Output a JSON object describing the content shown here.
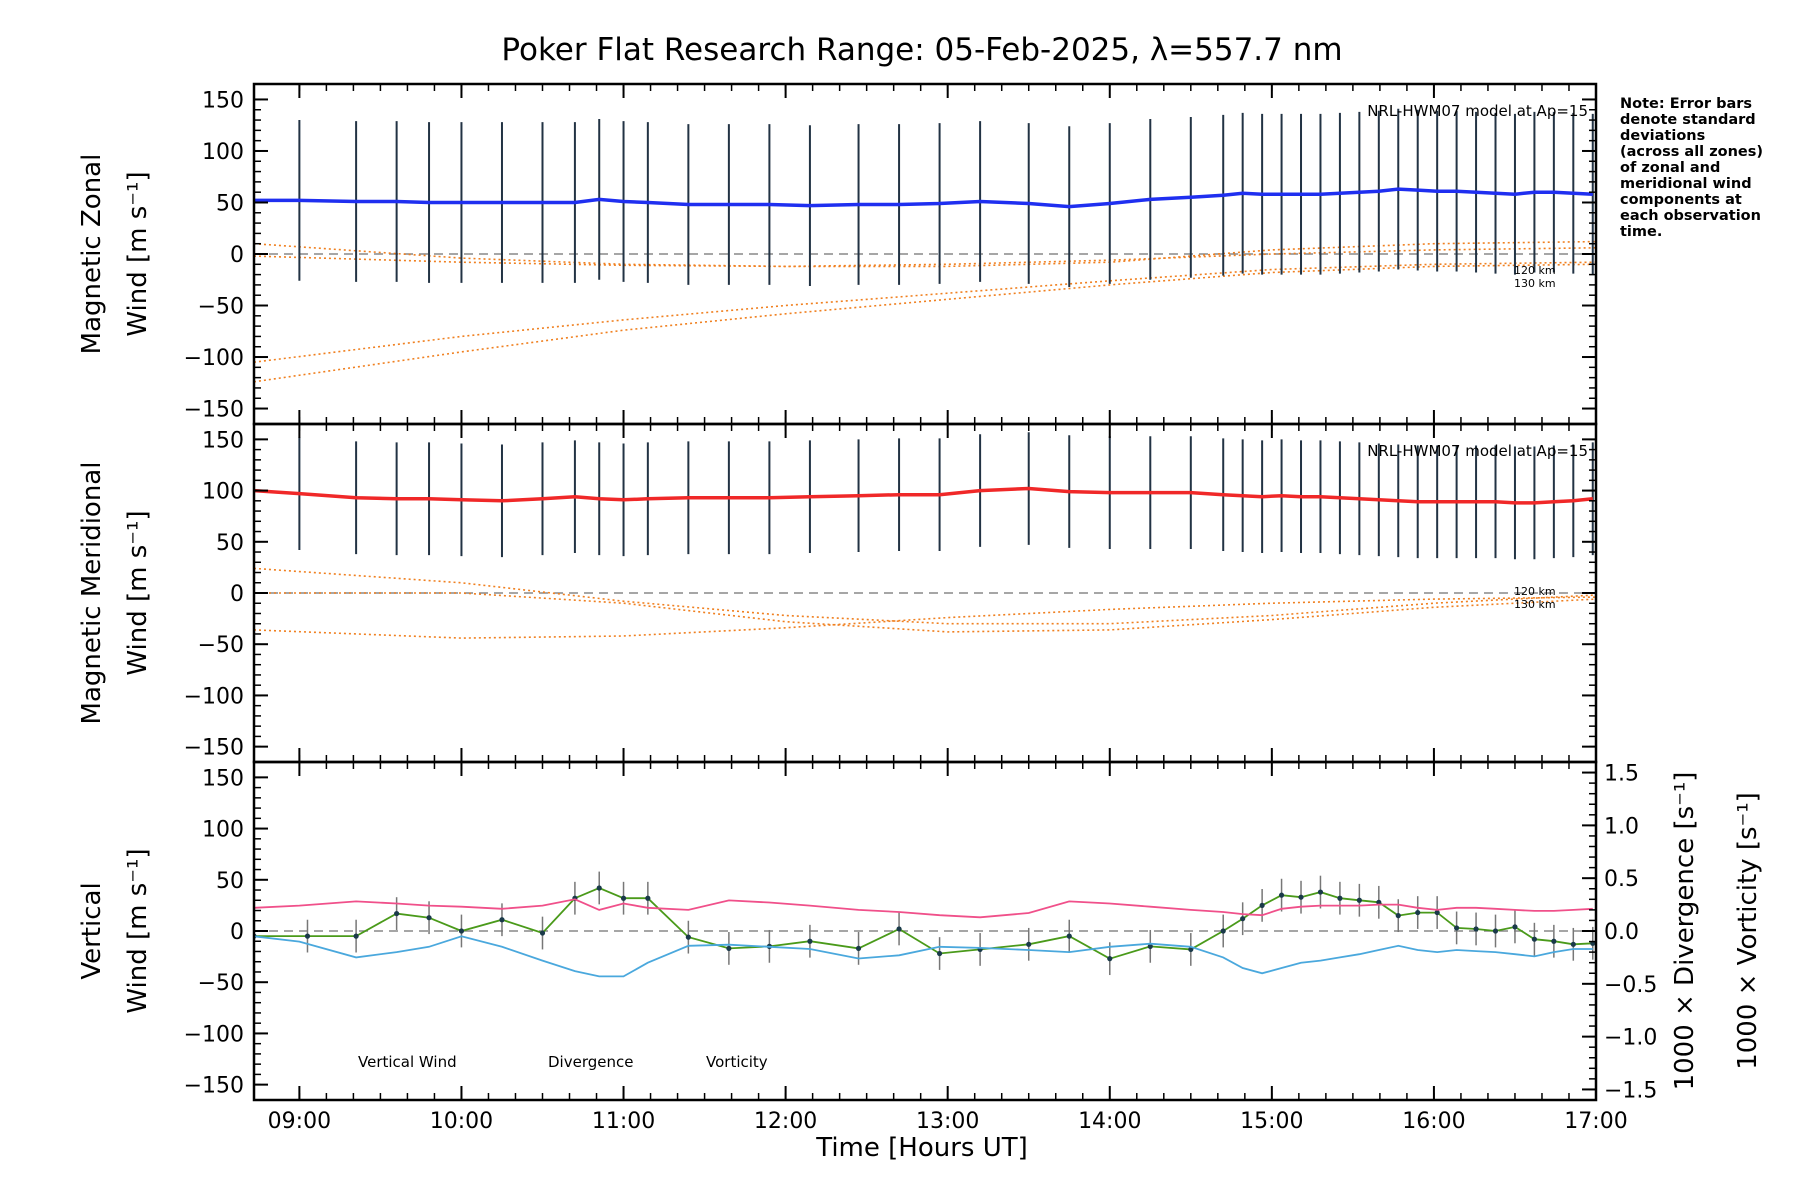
{
  "title": "Poker Flat Research Range: 05-Feb-2025, λ=557.7 nm",
  "note_lines": [
    "Note: Error bars",
    "denote standard",
    "deviations",
    "(across all zones)",
    "of zonal and",
    "meridional wind",
    "components at",
    "each observation",
    "time."
  ],
  "x_axis": {
    "label": "Time [Hours UT]",
    "range_hours": [
      8.72,
      17.0
    ],
    "tick_labels": [
      "09:00",
      "10:00",
      "11:00",
      "12:00",
      "13:00",
      "14:00",
      "15:00",
      "16:00",
      "17:00"
    ],
    "tick_hours": [
      9,
      10,
      11,
      12,
      13,
      14,
      15,
      16,
      17
    ]
  },
  "y_tick_labels": [
    "150",
    "100",
    "50",
    "0",
    "−50",
    "−100",
    "−150"
  ],
  "y_tick_values": [
    150,
    100,
    50,
    0,
    -50,
    -100,
    -150
  ],
  "right_tick_labels": [
    "1.5",
    "1.0",
    "0.5",
    "0.0",
    "−0.5",
    "−1.0",
    "−1.5"
  ],
  "right_tick_values": [
    1.5,
    1.0,
    0.5,
    0.0,
    -0.5,
    -1.0,
    -1.5
  ],
  "model_label": "NRL-HWM07 model at Ap=15",
  "model_alt_labels": [
    "120 km",
    "130 km"
  ],
  "colors": {
    "zonal": "#1f2ff0",
    "meridional": "#f02828",
    "vertical": "#4a9a1a",
    "vertical_label": "#66bb22",
    "divergence": "#4aa8dd",
    "vorticity": "#f0508a",
    "model": "#f08020",
    "errorbar": "#223344",
    "zero_line": "#888888"
  },
  "chart_data": [
    {
      "type": "line",
      "panel": "zonal",
      "ylabel": [
        "Magnetic Zonal",
        "Wind [m s⁻¹]"
      ],
      "ylim": [
        -165,
        165
      ],
      "x_hours": [
        8.72,
        9.0,
        9.35,
        9.6,
        9.8,
        10.0,
        10.25,
        10.5,
        10.7,
        10.85,
        11.0,
        11.15,
        11.4,
        11.65,
        11.9,
        12.15,
        12.45,
        12.7,
        12.95,
        13.2,
        13.5,
        13.75,
        14.0,
        14.25,
        14.5,
        14.7,
        14.82,
        14.94,
        15.06,
        15.18,
        15.3,
        15.42,
        15.54,
        15.66,
        15.78,
        15.9,
        16.02,
        16.14,
        16.26,
        16.38,
        16.5,
        16.62,
        16.74,
        16.86,
        16.98
      ],
      "series": [
        {
          "values": [
            52,
            52,
            51,
            51,
            50,
            50,
            50,
            50,
            50,
            53,
            51,
            50,
            48,
            48,
            48,
            47,
            48,
            48,
            49,
            51,
            49,
            46,
            49,
            53,
            55,
            57,
            59,
            58,
            58,
            58,
            58,
            59,
            60,
            61,
            63,
            62,
            61,
            61,
            60,
            59,
            58,
            60,
            60,
            59,
            58
          ]
        }
      ],
      "errorbar_x_hours": [
        9.0,
        9.35,
        9.6,
        9.8,
        10.0,
        10.25,
        10.5,
        10.7,
        10.85,
        11.0,
        11.15,
        11.4,
        11.65,
        11.9,
        12.15,
        12.45,
        12.7,
        12.95,
        13.2,
        13.5,
        13.75,
        14.0,
        14.25,
        14.5,
        14.7,
        14.82,
        14.94,
        15.06,
        15.18,
        15.3,
        15.42,
        15.54,
        15.66,
        15.78,
        15.9,
        16.02,
        16.14,
        16.26,
        16.38,
        16.5,
        16.62,
        16.74,
        16.86,
        16.98
      ],
      "errorbar_halfwidth": 78,
      "model_curves": [
        {
          "name": "120 km",
          "x_hours": [
            8.72,
            10.0,
            11.0,
            12.0,
            13.0,
            14.0,
            15.0,
            16.0,
            17.0
          ],
          "values": [
            -105,
            -80,
            -64,
            -50,
            -38,
            -26,
            -15,
            -10,
            -8
          ]
        },
        {
          "name": "130 km",
          "x_hours": [
            8.72,
            10.0,
            11.0,
            12.0,
            13.0,
            14.0,
            15.0,
            16.0,
            17.0
          ],
          "values": [
            -124,
            -95,
            -74,
            -58,
            -44,
            -30,
            -18,
            -12,
            -10
          ]
        },
        {
          "name": "",
          "x_hours": [
            8.72,
            10.0,
            11.0,
            12.0,
            13.0,
            14.0,
            15.0,
            16.0,
            17.0
          ],
          "values": [
            10,
            -4,
            -10,
            -12,
            -12,
            -8,
            4,
            10,
            12
          ]
        },
        {
          "name": "",
          "x_hours": [
            8.72,
            10.0,
            11.0,
            12.0,
            13.0,
            14.0,
            15.0,
            16.0,
            17.0
          ],
          "values": [
            -2,
            -8,
            -11,
            -12,
            -10,
            -6,
            0,
            4,
            6
          ]
        }
      ]
    },
    {
      "type": "line",
      "panel": "meridional",
      "ylabel": [
        "Magnetic Meridional",
        "Wind [m s⁻¹]"
      ],
      "ylim": [
        -165,
        165
      ],
      "x_hours": [
        8.72,
        9.0,
        9.35,
        9.6,
        9.8,
        10.0,
        10.25,
        10.5,
        10.7,
        10.85,
        11.0,
        11.15,
        11.4,
        11.65,
        11.9,
        12.15,
        12.45,
        12.7,
        12.95,
        13.2,
        13.5,
        13.75,
        14.0,
        14.25,
        14.5,
        14.7,
        14.82,
        14.94,
        15.06,
        15.18,
        15.3,
        15.42,
        15.54,
        15.66,
        15.78,
        15.9,
        16.02,
        16.14,
        16.26,
        16.38,
        16.5,
        16.62,
        16.74,
        16.86,
        16.98
      ],
      "series": [
        {
          "values": [
            100,
            97,
            93,
            92,
            92,
            91,
            90,
            92,
            94,
            92,
            91,
            92,
            93,
            93,
            93,
            94,
            95,
            96,
            96,
            100,
            102,
            99,
            98,
            98,
            98,
            96,
            95,
            94,
            95,
            94,
            94,
            93,
            92,
            91,
            90,
            89,
            89,
            89,
            89,
            89,
            88,
            88,
            89,
            90,
            92
          ]
        }
      ],
      "errorbar_x_hours": [
        9.0,
        9.35,
        9.6,
        9.8,
        10.0,
        10.25,
        10.5,
        10.7,
        10.85,
        11.0,
        11.15,
        11.4,
        11.65,
        11.9,
        12.15,
        12.45,
        12.7,
        12.95,
        13.2,
        13.5,
        13.75,
        14.0,
        14.25,
        14.5,
        14.7,
        14.82,
        14.94,
        15.06,
        15.18,
        15.3,
        15.42,
        15.54,
        15.66,
        15.78,
        15.9,
        16.02,
        16.14,
        16.26,
        16.38,
        16.5,
        16.62,
        16.74,
        16.86,
        16.98
      ],
      "errorbar_halfwidth": 55,
      "model_curves": [
        {
          "name": "120 km",
          "x_hours": [
            8.72,
            10.0,
            11.0,
            12.0,
            13.0,
            14.0,
            15.0,
            16.0,
            17.0
          ],
          "values": [
            24,
            10,
            -8,
            -22,
            -30,
            -30,
            -22,
            -10,
            -2
          ]
        },
        {
          "name": "130 km",
          "x_hours": [
            8.72,
            10.0,
            11.0,
            12.0,
            13.0,
            14.0,
            15.0,
            16.0,
            17.0
          ],
          "values": [
            0,
            0,
            -10,
            -28,
            -38,
            -36,
            -26,
            -14,
            -6
          ]
        },
        {
          "name": "",
          "x_hours": [
            8.72,
            10.0,
            11.0,
            12.0,
            13.0,
            14.0,
            15.0,
            16.0,
            17.0
          ],
          "values": [
            -36,
            -44,
            -42,
            -34,
            -24,
            -16,
            -10,
            -6,
            -4
          ]
        }
      ]
    },
    {
      "type": "line",
      "panel": "vertical",
      "ylabel": [
        "Vertical",
        "Wind [m s⁻¹]"
      ],
      "ylim": [
        -165,
        165
      ],
      "right_ylabels": [
        "1000 × Divergence [s⁻¹]",
        "1000 × Vorticity [s⁻¹]"
      ],
      "right_ylim": [
        -1.6,
        1.6
      ],
      "legend": [
        "Vertical Wind",
        "Divergence",
        "Vorticity"
      ],
      "series": [
        {
          "name": "Vertical Wind",
          "x_hours": [
            8.72,
            9.05,
            9.35,
            9.6,
            9.8,
            10.0,
            10.25,
            10.5,
            10.7,
            10.85,
            11.0,
            11.15,
            11.4,
            11.65,
            11.9,
            12.15,
            12.45,
            12.7,
            12.95,
            13.2,
            13.5,
            13.75,
            14.0,
            14.25,
            14.5,
            14.7,
            14.82,
            14.94,
            15.06,
            15.18,
            15.3,
            15.42,
            15.54,
            15.66,
            15.78,
            15.9,
            16.02,
            16.14,
            16.26,
            16.38,
            16.5,
            16.62,
            16.74,
            16.86,
            16.98
          ],
          "values": [
            -5,
            -5,
            -5,
            17,
            13,
            0,
            11,
            -2,
            32,
            42,
            32,
            32,
            -6,
            -17,
            -15,
            -10,
            -17,
            2,
            -22,
            -18,
            -13,
            -5,
            -27,
            -15,
            -18,
            0,
            12,
            25,
            35,
            33,
            38,
            32,
            30,
            28,
            15,
            18,
            18,
            3,
            2,
            0,
            4,
            -8,
            -10,
            -13,
            -12
          ],
          "errorbar_halfwidth": 16
        },
        {
          "name": "Divergence",
          "x_hours": [
            8.72,
            9.0,
            9.35,
            9.6,
            9.8,
            10.0,
            10.25,
            10.5,
            10.7,
            10.85,
            11.0,
            11.15,
            11.4,
            11.65,
            11.9,
            12.15,
            12.45,
            12.7,
            12.95,
            13.2,
            13.5,
            13.75,
            14.0,
            14.25,
            14.5,
            14.7,
            14.82,
            14.94,
            15.06,
            15.18,
            15.3,
            15.42,
            15.54,
            15.66,
            15.78,
            15.9,
            16.02,
            16.14,
            16.26,
            16.38,
            16.5,
            16.62,
            16.74,
            16.86,
            16.98
          ],
          "values": [
            -0.05,
            -0.1,
            -0.25,
            -0.2,
            -0.15,
            -0.05,
            -0.15,
            -0.28,
            -0.38,
            -0.43,
            -0.43,
            -0.3,
            -0.14,
            -0.13,
            -0.15,
            -0.17,
            -0.26,
            -0.23,
            -0.15,
            -0.16,
            -0.18,
            -0.2,
            -0.15,
            -0.12,
            -0.15,
            -0.25,
            -0.35,
            -0.4,
            -0.35,
            -0.3,
            -0.28,
            -0.25,
            -0.22,
            -0.18,
            -0.14,
            -0.18,
            -0.2,
            -0.18,
            -0.19,
            -0.2,
            -0.22,
            -0.24,
            -0.2,
            -0.17,
            -0.17
          ]
        },
        {
          "name": "Vorticity",
          "x_hours": [
            8.72,
            9.0,
            9.35,
            9.6,
            9.8,
            10.0,
            10.25,
            10.5,
            10.7,
            10.85,
            11.0,
            11.15,
            11.4,
            11.65,
            11.9,
            12.15,
            12.45,
            12.7,
            12.95,
            13.2,
            13.5,
            13.75,
            14.0,
            14.25,
            14.5,
            14.7,
            14.82,
            14.94,
            15.06,
            15.18,
            15.3,
            15.42,
            15.54,
            15.66,
            15.78,
            15.9,
            16.02,
            16.14,
            16.26,
            16.38,
            16.5,
            16.62,
            16.74,
            16.86,
            16.98
          ],
          "values": [
            0.22,
            0.24,
            0.28,
            0.26,
            0.24,
            0.23,
            0.21,
            0.24,
            0.3,
            0.2,
            0.26,
            0.22,
            0.2,
            0.29,
            0.27,
            0.24,
            0.2,
            0.18,
            0.15,
            0.13,
            0.17,
            0.28,
            0.26,
            0.23,
            0.2,
            0.18,
            0.16,
            0.15,
            0.21,
            0.23,
            0.24,
            0.24,
            0.24,
            0.25,
            0.25,
            0.22,
            0.2,
            0.22,
            0.22,
            0.21,
            0.2,
            0.19,
            0.19,
            0.2,
            0.21
          ]
        }
      ]
    }
  ]
}
